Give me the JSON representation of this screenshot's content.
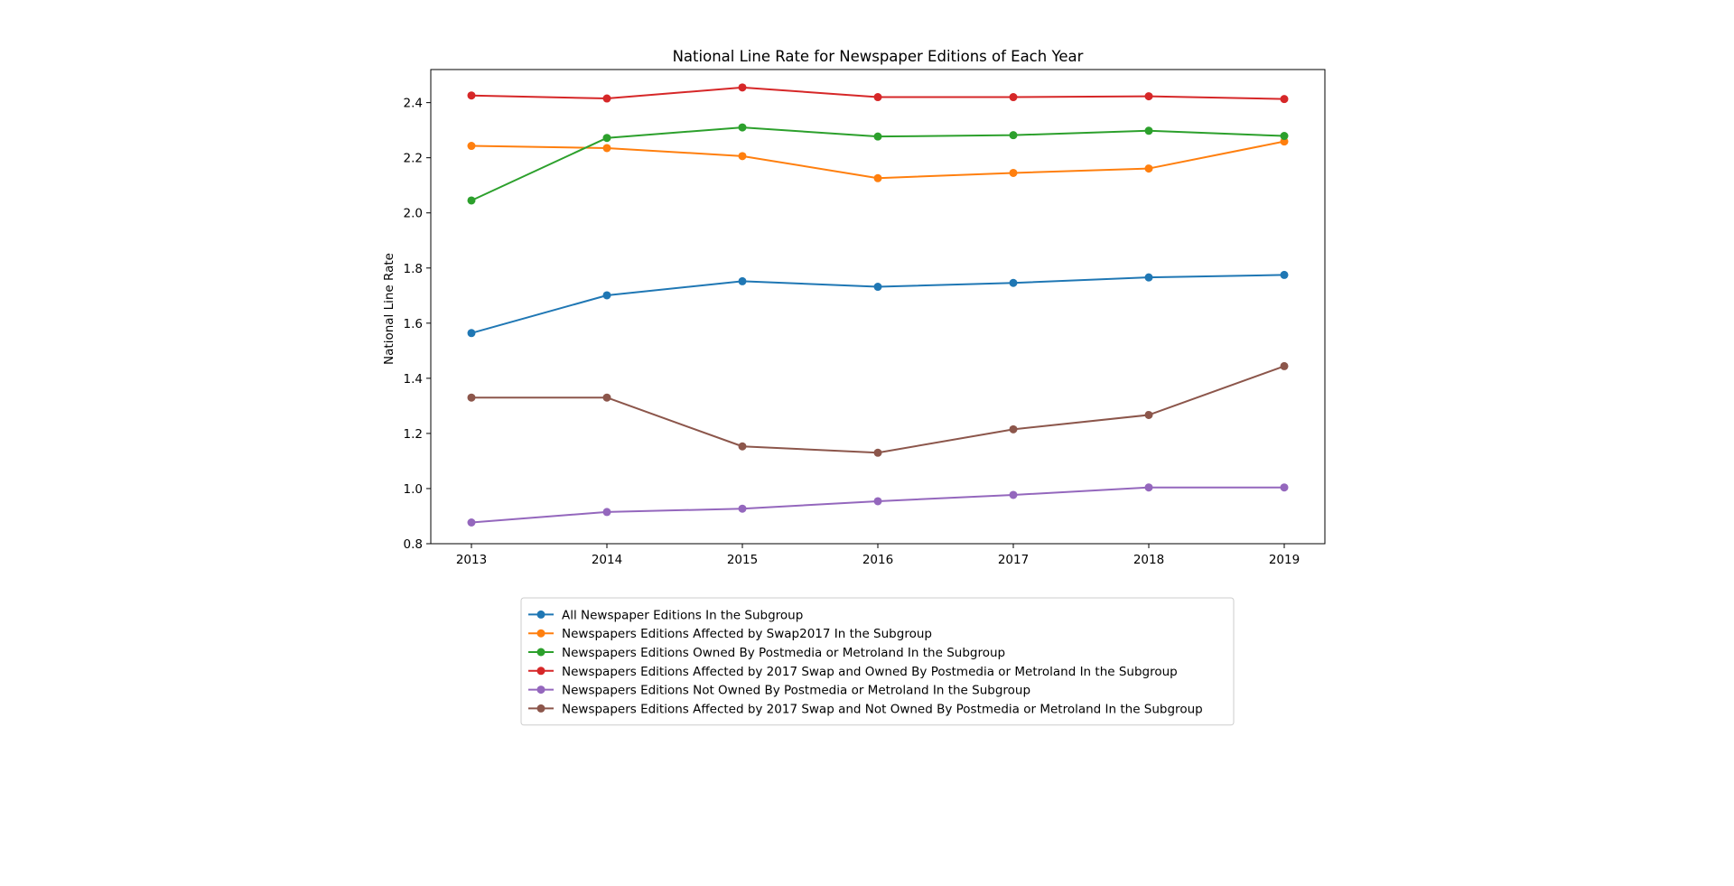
{
  "chart_data": {
    "type": "line",
    "title": "National Line Rate for Newspaper Editions of Each Year",
    "xlabel": "",
    "ylabel": "National Line Rate",
    "x": [
      2013,
      2014,
      2015,
      2016,
      2017,
      2018,
      2019
    ],
    "x_tick_labels": [
      "2013",
      "2014",
      "2015",
      "2016",
      "2017",
      "2018",
      "2019"
    ],
    "ylim": [
      0.8,
      2.52
    ],
    "y_ticks": [
      0.8,
      1.0,
      1.2,
      1.4,
      1.6,
      1.8,
      2.0,
      2.2,
      2.4
    ],
    "y_tick_labels": [
      "0.8",
      "1.0",
      "1.2",
      "1.4",
      "1.6",
      "1.8",
      "2.0",
      "2.2",
      "2.4"
    ],
    "grid": false,
    "legend_position": "below",
    "series": [
      {
        "name": "All Newspaper Editions In the Subgroup",
        "color": "#1f77b4",
        "values": [
          1.564,
          1.701,
          1.752,
          1.732,
          1.746,
          1.766,
          1.775
        ]
      },
      {
        "name": "Newspapers Editions Affected by Swap2017 In the Subgroup",
        "color": "#ff7f0e",
        "values": [
          2.243,
          2.235,
          2.206,
          2.126,
          2.145,
          2.161,
          2.259
        ]
      },
      {
        "name": "Newspapers Editions Owned By Postmedia or Metroland In the Subgroup",
        "color": "#2ca02c",
        "values": [
          2.045,
          2.272,
          2.31,
          2.277,
          2.282,
          2.298,
          2.279
        ]
      },
      {
        "name": "Newspapers Editions Affected by 2017 Swap and Owned By Postmedia or Metroland In the Subgroup",
        "color": "#d62728",
        "values": [
          2.426,
          2.415,
          2.455,
          2.42,
          2.42,
          2.423,
          2.413
        ]
      },
      {
        "name": "Newspapers Editions Not Owned By Postmedia or Metroland In the Subgroup",
        "color": "#9467bd",
        "values": [
          0.877,
          0.915,
          0.927,
          0.954,
          0.977,
          1.004,
          1.004
        ]
      },
      {
        "name": "Newspapers Editions Affected by 2017 Swap and Not Owned By Postmedia or Metroland In the Subgroup",
        "color": "#8c564b",
        "values": [
          1.33,
          1.33,
          1.153,
          1.13,
          1.215,
          1.267,
          1.444
        ]
      }
    ]
  }
}
